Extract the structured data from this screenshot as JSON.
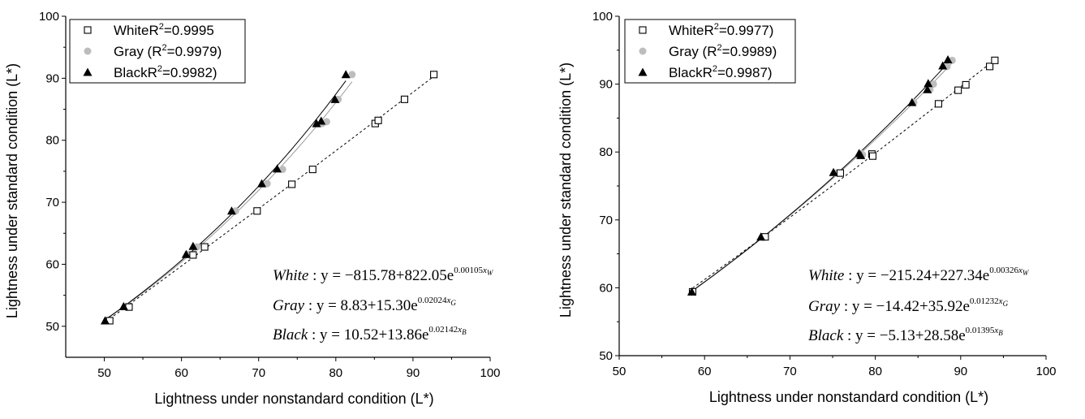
{
  "chart_data": [
    {
      "type": "scatter",
      "xlabel": "Lightness under nonstandard condition (L*)",
      "ylabel": "Lightness under standard condition (L*)",
      "xlim": [
        45,
        100
      ],
      "ylim": [
        45,
        100
      ],
      "xticks": [
        50,
        60,
        70,
        80,
        90,
        100
      ],
      "yticks": [
        50,
        60,
        70,
        80,
        90,
        100
      ],
      "series": [
        {
          "name": "White",
          "legend_label": "White(R²=0.9995)",
          "legend_name": "White",
          "legend_r2": "=0.9995",
          "marker": "open-square",
          "color": "#000000",
          "line_style": "dashed",
          "x": [
            50.7,
            53.2,
            61.5,
            63.0,
            69.8,
            74.3,
            77.0,
            85.1,
            85.5,
            88.9,
            92.7
          ],
          "y": [
            50.9,
            53.1,
            61.5,
            62.8,
            68.6,
            72.9,
            75.3,
            82.7,
            83.2,
            86.6,
            90.6
          ],
          "fit": {
            "a": -815.78,
            "b": 822.05,
            "c": 0.00105
          }
        },
        {
          "name": "Gray",
          "legend_label": "Gray (R²=0.9979)",
          "legend_name": "Gray (",
          "legend_r2": "=0.9979)",
          "marker": "filled-circle",
          "color": "#bdbdbd",
          "line_style": "solid",
          "x": [
            50.3,
            52.9,
            60.8,
            62.0,
            67.0,
            71.1,
            73.1,
            78.2,
            78.8,
            80.3,
            82.1
          ],
          "y": [
            50.9,
            53.2,
            61.6,
            62.8,
            68.6,
            73.0,
            75.3,
            82.7,
            83.0,
            86.6,
            90.6
          ],
          "fit": {
            "a": 8.83,
            "b": 15.3,
            "c": 0.02024
          }
        },
        {
          "name": "Black",
          "legend_label": "Black(R²=0.9982)",
          "legend_name": "Black",
          "legend_r2": "=0.9982)",
          "marker": "filled-triangle",
          "color": "#000000",
          "line_style": "solid",
          "x": [
            50.1,
            52.5,
            60.6,
            61.5,
            66.5,
            70.4,
            72.4,
            77.5,
            78.1,
            79.9,
            81.3
          ],
          "y": [
            50.9,
            53.2,
            61.6,
            62.9,
            68.6,
            73.0,
            75.4,
            82.7,
            83.1,
            86.6,
            90.6
          ],
          "fit": {
            "a": 10.52,
            "b": 13.86,
            "c": 0.02142
          }
        }
      ],
      "equations": [
        {
          "name": "White",
          "body": " : y = −815.78+822.05e",
          "exp": "0.00105",
          "var": "x",
          "sub": "W"
        },
        {
          "name": "Gray",
          "body": " : y = 8.83+15.30e",
          "exp": "0.02024",
          "var": "x",
          "sub": "G"
        },
        {
          "name": "Black",
          "body": " : y = 10.52+13.86e",
          "exp": "0.02142",
          "var": "x",
          "sub": "B"
        }
      ],
      "legend_position": "top-left"
    },
    {
      "type": "scatter",
      "xlabel": "Lightness under nonstandard condition (L*)",
      "ylabel": "Lightness under standard condition (L*)",
      "xlim": [
        50,
        100
      ],
      "ylim": [
        50,
        100
      ],
      "xticks": [
        50,
        60,
        70,
        80,
        90,
        100
      ],
      "yticks": [
        50,
        60,
        70,
        80,
        90,
        100
      ],
      "series": [
        {
          "name": "White",
          "legend_label": "White(R²=0.9977)",
          "legend_name": "White",
          "legend_r2": "=0.9977)",
          "marker": "open-square",
          "color": "#000000",
          "line_style": "dashed",
          "x": [
            58.6,
            67.1,
            75.9,
            79.6,
            79.7,
            87.4,
            89.7,
            90.6,
            93.4,
            94.0
          ],
          "y": [
            59.4,
            67.5,
            76.9,
            79.7,
            79.4,
            87.1,
            89.1,
            89.9,
            92.6,
            93.5
          ],
          "fit": {
            "a": -215.24,
            "b": 227.34,
            "c": 0.00326
          }
        },
        {
          "name": "Gray",
          "legend_label": "Gray (R²=0.9989)",
          "legend_name": "Gray (",
          "legend_r2": "=0.9989)",
          "marker": "filled-circle",
          "color": "#bdbdbd",
          "line_style": "solid",
          "x": [
            58.6,
            66.8,
            75.3,
            78.3,
            78.5,
            84.5,
            86.4,
            86.8,
            88.4,
            89.0
          ],
          "y": [
            59.4,
            67.5,
            76.9,
            79.8,
            79.6,
            87.3,
            89.2,
            90.0,
            92.6,
            93.5
          ],
          "fit": {
            "a": -14.42,
            "b": 35.92,
            "c": 0.01232
          }
        },
        {
          "name": "Black",
          "legend_label": "Black(R²=0.9987)",
          "legend_name": "Black",
          "legend_r2": "=0.9987)",
          "marker": "filled-triangle",
          "color": "#000000",
          "line_style": "solid",
          "x": [
            58.5,
            66.6,
            75.1,
            78.1,
            78.3,
            84.3,
            86.1,
            86.2,
            87.9,
            88.5
          ],
          "y": [
            59.4,
            67.5,
            77.0,
            79.8,
            79.5,
            87.3,
            89.2,
            90.1,
            92.7,
            93.6
          ],
          "fit": {
            "a": -5.13,
            "b": 28.58,
            "c": 0.01395
          }
        }
      ],
      "equations": [
        {
          "name": "White",
          "body": " : y = −215.24+227.34e",
          "exp": "0.00326",
          "var": "x",
          "sub": "W"
        },
        {
          "name": "Gray",
          "body": " : y = −14.42+35.92e",
          "exp": "0.01232",
          "var": "x",
          "sub": "G"
        },
        {
          "name": "Black",
          "body": " : y = −5.13+28.58e",
          "exp": "0.01395",
          "var": "x",
          "sub": "B"
        }
      ],
      "legend_position": "top-left"
    }
  ]
}
